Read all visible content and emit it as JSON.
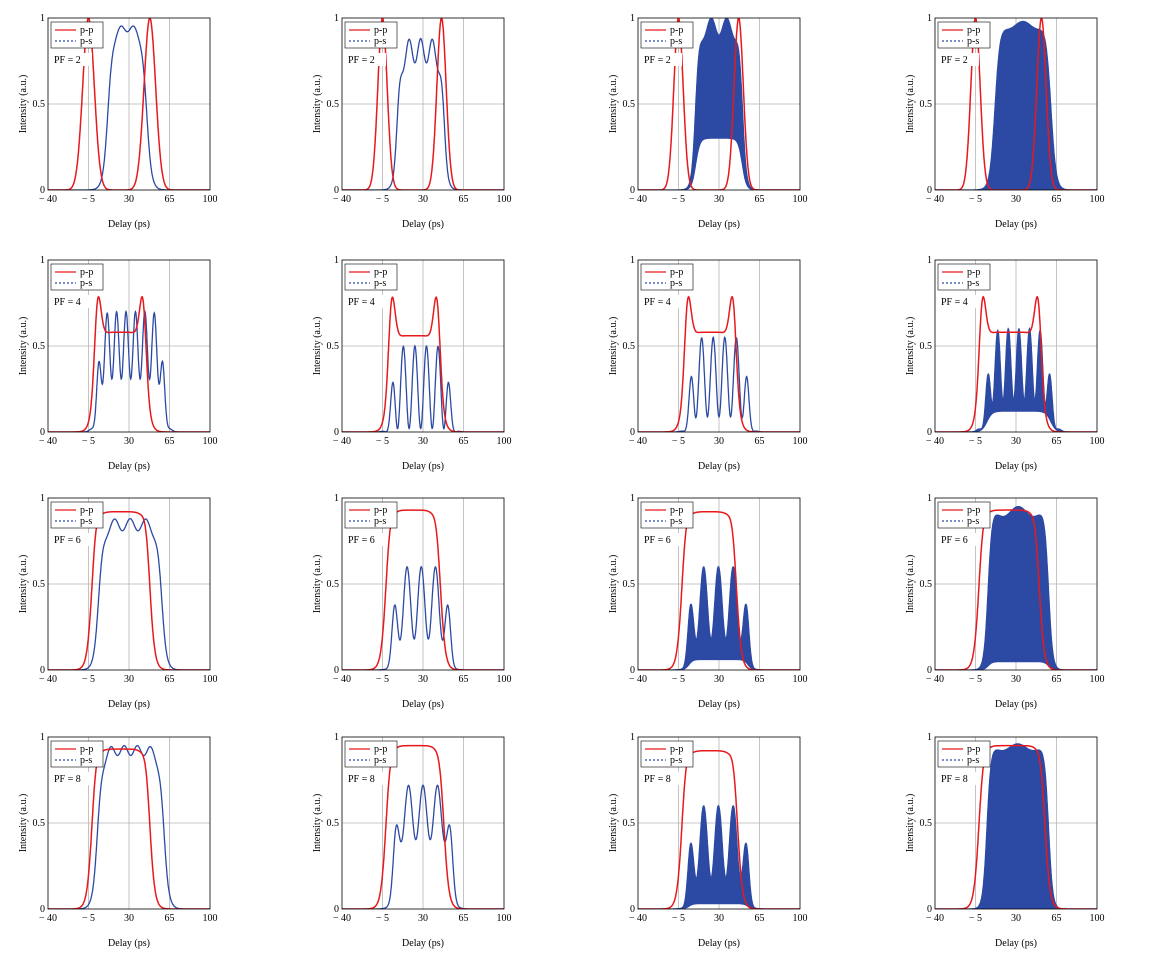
{
  "figure": {
    "rows": 4,
    "cols": 4,
    "xlabel": "Delay (ps)",
    "ylabel": "Intensity (a.u.)",
    "xticks": [
      "− 40",
      "− 5",
      "30",
      "65",
      "100"
    ],
    "yticks": [
      "0",
      "0.5",
      "1"
    ],
    "legend": [
      "p-p",
      "p-s"
    ],
    "colors": {
      "pp": "#e8191c",
      "ps": "#2c4aa3",
      "grid": "#b5b5b5"
    }
  },
  "chart_data": [
    {
      "type": "line",
      "pf_label": "PF = 2",
      "xlim": [
        -40,
        100
      ],
      "ylim": [
        0,
        1
      ],
      "pp": {
        "shape": "split",
        "pos": [
          -5,
          48
        ],
        "width": 5,
        "plateau": 0.0
      },
      "ps": {
        "lo": 12,
        "hi": 45,
        "edge": 5,
        "level": 0.96,
        "ripples": 3,
        "ripple_amp": 0.02,
        "fill": false
      }
    },
    {
      "type": "line",
      "pf_label": "PF = 2",
      "xlim": [
        -40,
        100
      ],
      "ylim": [
        0,
        1
      ],
      "pp": {
        "shape": "split",
        "pos": [
          -5,
          46
        ],
        "width": 4,
        "plateau": 0.0
      },
      "ps": {
        "lo": 8,
        "hi": 48,
        "edge": 4,
        "level": 0.88,
        "ripples": 4,
        "ripple_amp": 0.08,
        "fill": false
      }
    },
    {
      "type": "line",
      "pf_label": "PF = 2",
      "xlim": [
        -40,
        100
      ],
      "ylim": [
        0,
        1
      ],
      "pp": {
        "shape": "split",
        "pos": [
          -5,
          47
        ],
        "width": 4,
        "plateau": 0.0
      },
      "ps": {
        "lo": 10,
        "hi": 50,
        "edge": 4,
        "level": 1.0,
        "ripples": 3,
        "ripple_amp": 0.05,
        "fill": true,
        "fill_low": 0.3
      }
    },
    {
      "type": "line",
      "pf_label": "PF = 2",
      "xlim": [
        -40,
        100
      ],
      "ylim": [
        0,
        1
      ],
      "pp": {
        "shape": "split",
        "pos": [
          -5,
          52
        ],
        "width": 4,
        "plateau": 0.0
      },
      "ps": {
        "lo": 12,
        "hi": 60,
        "edge": 5,
        "level": 0.98,
        "ripples": 2,
        "ripple_amp": 0.02,
        "fill": true,
        "fill_low": 0.0
      }
    },
    {
      "type": "line",
      "pf_label": "PF = 4",
      "xlim": [
        -40,
        100
      ],
      "ylim": [
        0,
        1
      ],
      "pp": {
        "shape": "block",
        "lo": 0,
        "hi": 45,
        "edge": 5,
        "level": 0.58,
        "peak": 1.0
      },
      "ps": {
        "lo": 3,
        "hi": 60,
        "edge": 4,
        "level": 0.7,
        "ripples": 7,
        "ripple_amp": 0.28,
        "fill": false
      }
    },
    {
      "type": "line",
      "pf_label": "PF = 4",
      "xlim": [
        -40,
        100
      ],
      "ylim": [
        0,
        1
      ],
      "pp": {
        "shape": "block",
        "lo": 0,
        "hi": 45,
        "edge": 5,
        "level": 0.56,
        "peak": 1.0
      },
      "ps": {
        "lo": 3,
        "hi": 53,
        "edge": 4,
        "level": 0.5,
        "ripples": 5,
        "ripple_amp": 0.48,
        "fill": false
      }
    },
    {
      "type": "line",
      "pf_label": "PF = 4",
      "xlim": [
        -40,
        100
      ],
      "ylim": [
        0,
        1
      ],
      "pp": {
        "shape": "block",
        "lo": 0,
        "hi": 45,
        "edge": 5,
        "level": 0.58,
        "peak": 1.0
      },
      "ps": {
        "lo": 5,
        "hi": 55,
        "edge": 4,
        "level": 0.55,
        "ripples": 5,
        "ripple_amp": 0.42,
        "fill": false
      }
    },
    {
      "type": "line",
      "pf_label": "PF = 4",
      "xlim": [
        -40,
        100
      ],
      "ylim": [
        0,
        1
      ],
      "pp": {
        "shape": "block",
        "lo": -2,
        "hi": 52,
        "edge": 5,
        "level": 0.58,
        "peak": 1.0
      },
      "ps": {
        "lo": 5,
        "hi": 60,
        "edge": 5,
        "level": 0.6,
        "ripples": 6,
        "ripple_amp": 0.35,
        "fill": true,
        "fill_low": 0.2
      }
    },
    {
      "type": "line",
      "pf_label": "PF = 6",
      "xlim": [
        -40,
        100
      ],
      "ylim": [
        0,
        1
      ],
      "pp": {
        "shape": "block",
        "lo": -2,
        "hi": 48,
        "edge": 5,
        "level": 0.92,
        "peak": 0.99
      },
      "ps": {
        "lo": 4,
        "hi": 58,
        "edge": 5,
        "level": 0.88,
        "ripples": 4,
        "ripple_amp": 0.04,
        "fill": false
      }
    },
    {
      "type": "line",
      "pf_label": "PF = 6",
      "xlim": [
        -40,
        100
      ],
      "ylim": [
        0,
        1
      ],
      "pp": {
        "shape": "block",
        "lo": -2,
        "hi": 45,
        "edge": 5,
        "level": 0.93,
        "peak": 0.99
      },
      "ps": {
        "lo": 4,
        "hi": 53,
        "edge": 4,
        "level": 0.6,
        "ripples": 4,
        "ripple_amp": 0.35,
        "fill": false
      }
    },
    {
      "type": "line",
      "pf_label": "PF = 6",
      "xlim": [
        -40,
        100
      ],
      "ylim": [
        0,
        1
      ],
      "pp": {
        "shape": "block",
        "lo": -2,
        "hi": 45,
        "edge": 5,
        "level": 0.92,
        "peak": 0.99
      },
      "ps": {
        "lo": 4,
        "hi": 55,
        "edge": 4,
        "level": 0.6,
        "ripples": 4,
        "ripple_amp": 0.35,
        "fill": true,
        "fill_low": 0.1
      }
    },
    {
      "type": "line",
      "pf_label": "PF = 6",
      "xlim": [
        -40,
        100
      ],
      "ylim": [
        0,
        1
      ],
      "pp": {
        "shape": "block",
        "lo": -2,
        "hi": 50,
        "edge": 5,
        "level": 0.93,
        "peak": 0.99
      },
      "ps": {
        "lo": 6,
        "hi": 58,
        "edge": 4,
        "level": 0.95,
        "ripples": 2,
        "ripple_amp": 0.03,
        "fill": true,
        "fill_low": 0.05
      }
    },
    {
      "type": "line",
      "pf_label": "PF = 8",
      "xlim": [
        -40,
        100
      ],
      "ylim": [
        0,
        1
      ],
      "pp": {
        "shape": "block",
        "lo": -2,
        "hi": 48,
        "edge": 5,
        "level": 0.93,
        "peak": 0.99
      },
      "ps": {
        "lo": 3,
        "hi": 60,
        "edge": 5,
        "level": 0.95,
        "ripples": 5,
        "ripple_amp": 0.03,
        "fill": false
      }
    },
    {
      "type": "line",
      "pf_label": "PF = 8",
      "xlim": [
        -40,
        100
      ],
      "ylim": [
        0,
        1
      ],
      "pp": {
        "shape": "block",
        "lo": -2,
        "hi": 48,
        "edge": 5,
        "level": 0.95,
        "peak": 0.99
      },
      "ps": {
        "lo": 5,
        "hi": 55,
        "edge": 4,
        "level": 0.72,
        "ripples": 4,
        "ripple_amp": 0.22,
        "fill": false
      }
    },
    {
      "type": "line",
      "pf_label": "PF = 8",
      "xlim": [
        -40,
        100
      ],
      "ylim": [
        0,
        1
      ],
      "pp": {
        "shape": "block",
        "lo": -2,
        "hi": 46,
        "edge": 5,
        "level": 0.92,
        "peak": 0.99
      },
      "ps": {
        "lo": 4,
        "hi": 55,
        "edge": 4,
        "level": 0.6,
        "ripples": 4,
        "ripple_amp": 0.35,
        "fill": true,
        "fill_low": 0.05
      }
    },
    {
      "type": "line",
      "pf_label": "PF = 8",
      "xlim": [
        -40,
        100
      ],
      "ylim": [
        0,
        1
      ],
      "pp": {
        "shape": "block",
        "lo": -2,
        "hi": 55,
        "edge": 5,
        "level": 0.95,
        "peak": 0.99
      },
      "ps": {
        "lo": 5,
        "hi": 58,
        "edge": 4,
        "level": 0.96,
        "ripples": 2,
        "ripple_amp": 0.02,
        "fill": true,
        "fill_low": 0.0
      }
    }
  ]
}
